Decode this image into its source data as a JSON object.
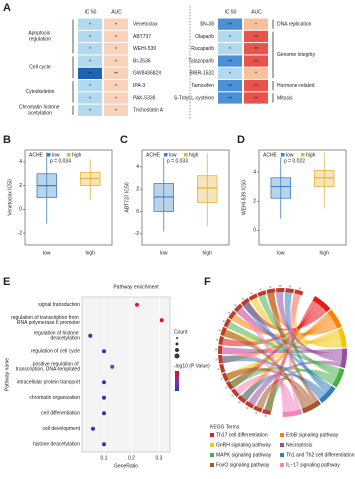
{
  "chart_data": [
    {
      "type": "heatmap",
      "label": "A",
      "tables": [
        {
          "columns": [
            "IC 50",
            "AUC"
          ],
          "groups": [
            {
              "name": "Apoptosis regulation",
              "rows": [
                {
                  "name": "Venetoclax",
                  "cells": [
                    {
                      "label": "*",
                      "color": "#b3d9ef"
                    },
                    {
                      "label": "*",
                      "color": "#f9d2bc"
                    }
                  ]
                },
                {
                  "name": "ABT737",
                  "cells": [
                    {
                      "label": "*",
                      "color": "#b3d9ef"
                    },
                    {
                      "label": "*",
                      "color": "#f9d2bc"
                    }
                  ]
                },
                {
                  "name": "WEHI-539",
                  "cells": [
                    {
                      "label": "*",
                      "color": "#b3d9ef"
                    },
                    {
                      "label": "*",
                      "color": "#f9d2bc"
                    }
                  ]
                }
              ]
            },
            {
              "name": "Cell cycle",
              "rows": [
                {
                  "name": "BI-2536",
                  "cells": [
                    {
                      "label": "*",
                      "color": "#b3d9ef"
                    },
                    {
                      "label": "*",
                      "color": "#f9d2bc"
                    }
                  ]
                },
                {
                  "name": "GW843682X",
                  "cells": [
                    {
                      "label": "**",
                      "color": "#1f63b8"
                    },
                    {
                      "label": "**",
                      "color": "#f9d2bc"
                    }
                  ]
                }
              ]
            },
            {
              "name": "Cytoskeleton",
              "rows": [
                {
                  "name": "IPA-3",
                  "cells": [
                    {
                      "label": "*",
                      "color": "#b3d9ef"
                    },
                    {
                      "label": "*",
                      "color": "#f9d2bc"
                    }
                  ]
                },
                {
                  "name": "PAK-5339",
                  "cells": [
                    {
                      "label": "*",
                      "color": "#b3d9ef"
                    },
                    {
                      "label": "*",
                      "color": "#f9d2bc"
                    }
                  ]
                }
              ]
            },
            {
              "name": "Chromatin histone acetylation",
              "rows": [
                {
                  "name": "Trichostatin A",
                  "cells": [
                    {
                      "label": "*",
                      "color": "#b3d9ef"
                    },
                    {
                      "label": "*",
                      "color": "#f9d2bc"
                    }
                  ]
                }
              ]
            }
          ]
        },
        {
          "columns": [
            "IC 50",
            "AUC"
          ],
          "groups": [
            {
              "name": "DNA replication",
              "rows": [
                {
                  "name": "SN-38",
                  "cells": [
                    {
                      "label": "**",
                      "color": "#4a90d4"
                    },
                    {
                      "label": "*",
                      "color": "#f6c29c"
                    }
                  ]
                }
              ]
            },
            {
              "name": "Genome integrity",
              "rows": [
                {
                  "name": "Olaparib",
                  "cells": [
                    {
                      "label": "*",
                      "color": "#b3d9ef"
                    },
                    {
                      "label": "**",
                      "color": "#e8544c"
                    }
                  ]
                },
                {
                  "name": "Rucaparib",
                  "cells": [
                    {
                      "label": "*",
                      "color": "#b3d9ef"
                    },
                    {
                      "label": "**",
                      "color": "#e8544c"
                    }
                  ]
                },
                {
                  "name": "Talazoparib",
                  "cells": [
                    {
                      "label": "**",
                      "color": "#4a90d4"
                    },
                    {
                      "label": "**",
                      "color": "#e8544c"
                    }
                  ]
                },
                {
                  "name": "BIBR-1532",
                  "cells": [
                    {
                      "label": "*",
                      "color": "#b3d9ef"
                    },
                    {
                      "label": "*",
                      "color": "#f6c29c"
                    }
                  ]
                }
              ]
            },
            {
              "name": "Hormone-related",
              "rows": [
                {
                  "name": "Tamoxifen",
                  "cells": [
                    {
                      "label": "**",
                      "color": "#4a90d4"
                    },
                    {
                      "label": "**",
                      "color": "#e8544c"
                    }
                  ]
                }
              ]
            },
            {
              "name": "Mitosis",
              "rows": [
                {
                  "name": "S-Trityl-L-cysteine",
                  "cells": [
                    {
                      "label": "**",
                      "color": "#4a90d4"
                    },
                    {
                      "label": "**",
                      "color": "#e8544c"
                    }
                  ]
                }
              ]
            }
          ]
        }
      ]
    },
    {
      "type": "box",
      "label": "B",
      "legend_title": "ACHE",
      "annotation": "p = 0.034",
      "ylabel": "Venetoclax IC50",
      "categories": [
        "low",
        "high"
      ],
      "ylim": [
        -3,
        5
      ],
      "yticks": [
        -2,
        0,
        2,
        4
      ],
      "series": [
        {
          "name": "low",
          "color": "#3b82c4",
          "whisker_low": -1.2,
          "q1": 1.0,
          "median": 2.0,
          "q3": 3.0,
          "whisker_high": 4.8
        },
        {
          "name": "high",
          "color": "#e6b43a",
          "whisker_low": 0.8,
          "q1": 2.0,
          "median": 2.6,
          "q3": 3.1,
          "whisker_high": 4.2
        }
      ]
    },
    {
      "type": "box",
      "label": "C",
      "legend_title": "ACHE",
      "annotation": "p = 0.033",
      "ylabel": "ABT737 IC50",
      "categories": [
        "low",
        "high"
      ],
      "ylim": [
        -3,
        5.5
      ],
      "yticks": [
        -2,
        0,
        2,
        4
      ],
      "series": [
        {
          "name": "low",
          "color": "#3b82c4",
          "whisker_low": -1.8,
          "q1": 0.0,
          "median": 1.3,
          "q3": 2.5,
          "whisker_high": 4.8
        },
        {
          "name": "high",
          "color": "#e6b43a",
          "whisker_low": -1.3,
          "q1": 0.8,
          "median": 2.1,
          "q3": 3.2,
          "whisker_high": 5.2
        }
      ]
    },
    {
      "type": "box",
      "label": "D",
      "legend_title": "ACHE",
      "annotation": "p = 0.022",
      "ylabel": "WEHI-539 IC50",
      "categories": [
        "low",
        "high"
      ],
      "ylim": [
        -1,
        5.5
      ],
      "yticks": [
        0,
        2,
        4
      ],
      "series": [
        {
          "name": "low",
          "color": "#3b82c4",
          "whisker_low": 0.8,
          "q1": 2.2,
          "median": 3.0,
          "q3": 3.6,
          "whisker_high": 5.0
        },
        {
          "name": "high",
          "color": "#e6b43a",
          "whisker_low": 1.5,
          "q1": 3.0,
          "median": 3.6,
          "q3": 4.1,
          "whisker_high": 5.3
        }
      ]
    },
    {
      "type": "dot",
      "label": "E",
      "title": "Pathway enrichment",
      "xlabel": "GeneRatio",
      "ylabel": "Pathway name",
      "legend_titles": [
        "Count",
        "-log10 (P Value)"
      ],
      "categories": [
        "signal transduction",
        "regulation of transcription from RNA polymerase II promoter",
        "regulation of histone deacetylation",
        "regulation of cell cycle",
        "positive regulation of transcription, DNA-templated",
        "intracellular protein transport",
        "chromatin organization",
        "cell differentiation",
        "cell development",
        "histone deacetylation"
      ],
      "values": [
        0.22,
        0.31,
        0.05,
        0.1,
        0.13,
        0.1,
        0.1,
        0.1,
        0.06,
        0.1
      ],
      "colors": [
        "#d8202a",
        "#e0101a",
        "#2f35c0",
        "#2f35c0",
        "#8a30a8",
        "#2f35c0",
        "#2f35c0",
        "#2f35c0",
        "#2f35c0",
        "#2f35c0"
      ],
      "xlim": [
        0.02,
        0.34
      ],
      "xticks": [
        0.1,
        0.2,
        0.3
      ]
    },
    {
      "type": "chord",
      "label": "F",
      "legend_title": "KEGG Terms",
      "terms": [
        {
          "name": "Th17 cell differentiation",
          "color": "#e41a1c"
        },
        {
          "name": "ErbB signaling pathway",
          "color": "#ff7f00"
        },
        {
          "name": "GnRH signaling pathway",
          "color": "#f2c80f"
        },
        {
          "name": "Necroptosis",
          "color": "#984ea3"
        },
        {
          "name": "MAPK signaling pathway",
          "color": "#4daf4a"
        },
        {
          "name": "Th1 and Th2 cell differentiation",
          "color": "#377eb8"
        },
        {
          "name": "FoxO signaling pathway",
          "color": "#a65628"
        },
        {
          "name": "IL−17 signaling pathway",
          "color": "#f781bf"
        }
      ]
    }
  ]
}
